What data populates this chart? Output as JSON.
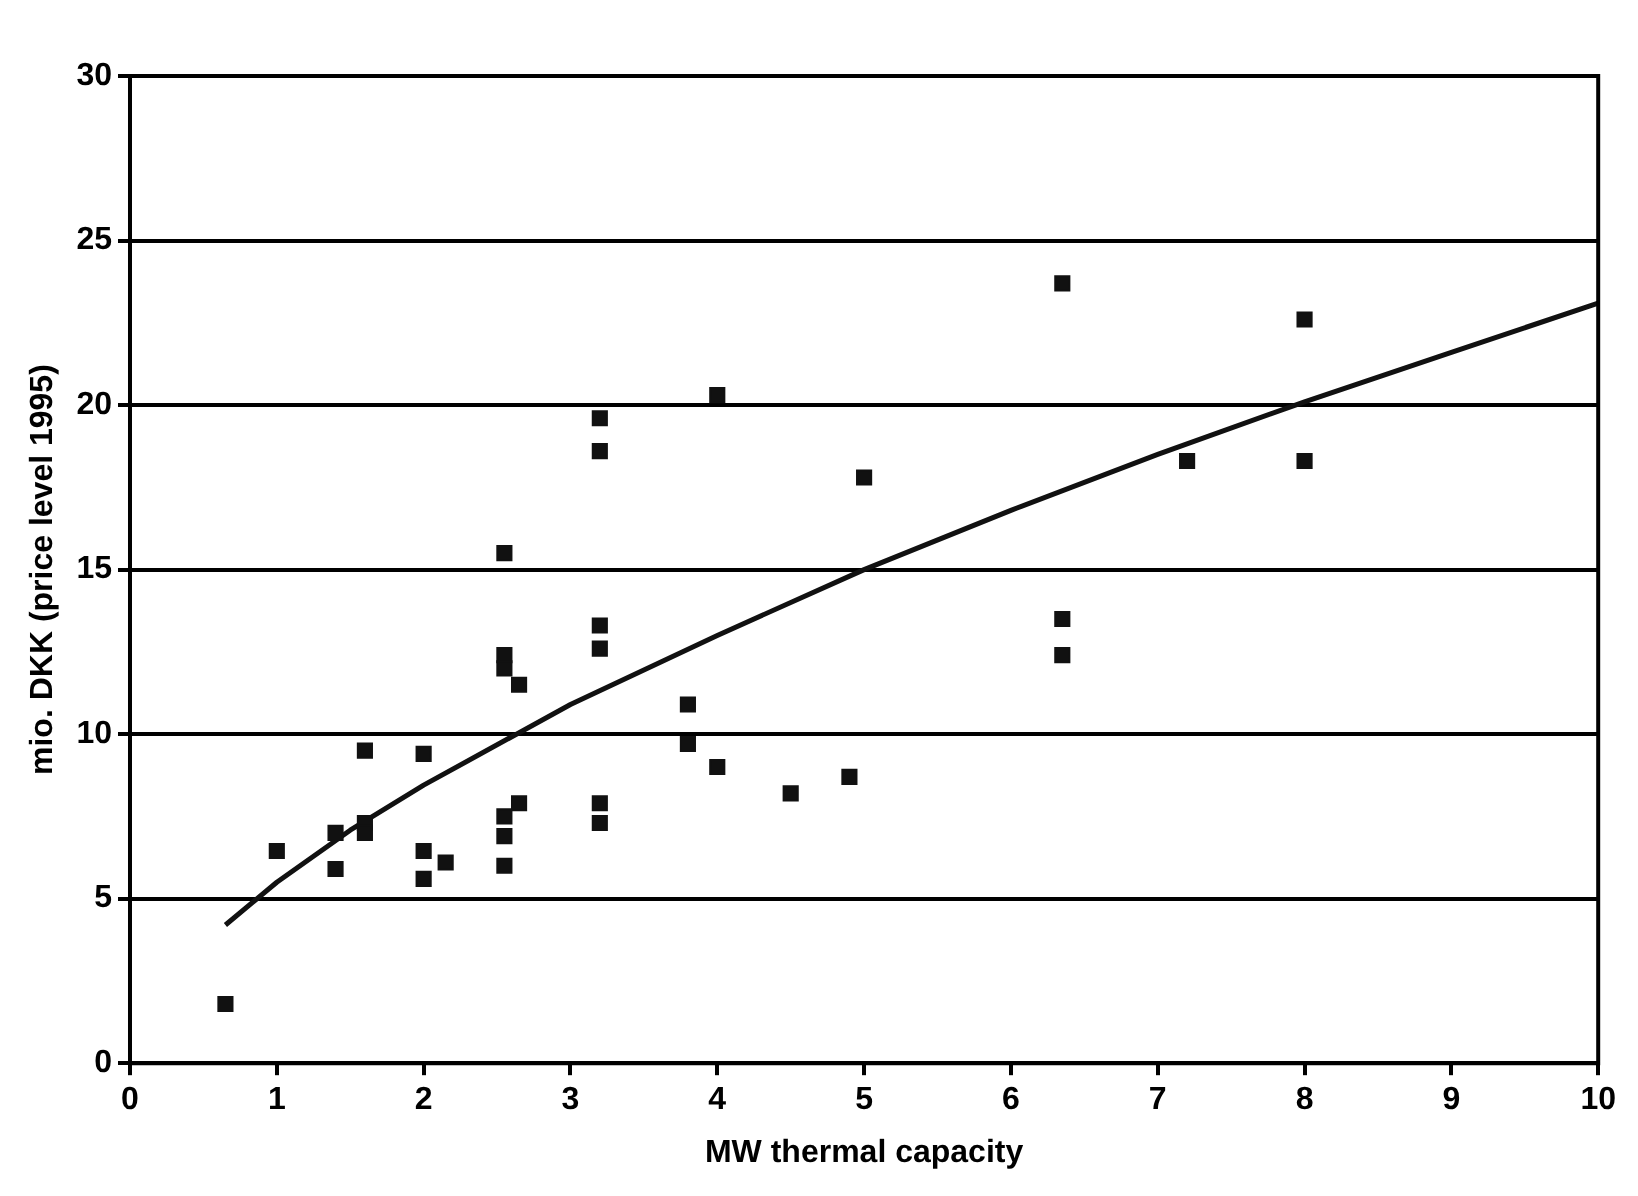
{
  "chart_data": {
    "type": "scatter",
    "xlabel": "MW thermal capacity",
    "ylabel": "mio. DKK (price level 1995)",
    "xlim": [
      0,
      10
    ],
    "xticks": [
      0,
      1,
      2,
      3,
      4,
      5,
      6,
      7,
      8,
      9,
      10
    ],
    "ylim": [
      0,
      30
    ],
    "yticks": [
      0,
      5,
      10,
      15,
      20,
      25,
      30
    ],
    "grid": "y",
    "marker": "square",
    "series": [
      {
        "color": "#111111",
        "x": [
          0.65,
          1.0,
          1.4,
          1.4,
          1.6,
          1.6,
          1.6,
          2.0,
          2.0,
          2.0,
          2.15,
          2.55,
          2.55,
          2.55,
          2.65,
          2.55,
          2.55,
          2.55,
          2.65,
          3.2,
          3.2,
          3.2,
          3.2,
          3.2,
          3.2,
          3.8,
          3.8,
          4.0,
          4.0,
          4.5,
          4.9,
          5.0,
          6.35,
          6.35,
          6.35,
          7.2,
          8.0,
          8.0
        ],
        "values": [
          1.8,
          6.45,
          7.0,
          5.9,
          7.3,
          7.0,
          9.5,
          9.4,
          6.45,
          5.6,
          6.1,
          15.5,
          12.4,
          12.0,
          11.5,
          7.5,
          6.9,
          6.0,
          7.9,
          19.6,
          18.6,
          13.3,
          12.6,
          7.9,
          7.3,
          10.9,
          9.7,
          20.3,
          9.0,
          8.2,
          8.7,
          17.8,
          23.7,
          13.5,
          12.4,
          18.3,
          22.6,
          18.3
        ]
      },
      {
        "type": "line",
        "color": "#111111",
        "marker": "none",
        "x": [
          0.65,
          1,
          1.5,
          2,
          3,
          4,
          5,
          6,
          7,
          8,
          9,
          10
        ],
        "values": [
          4.2,
          5.5,
          7.08,
          8.45,
          10.9,
          13.0,
          15.0,
          16.8,
          18.5,
          20.1,
          21.6,
          23.1
        ]
      }
    ]
  }
}
